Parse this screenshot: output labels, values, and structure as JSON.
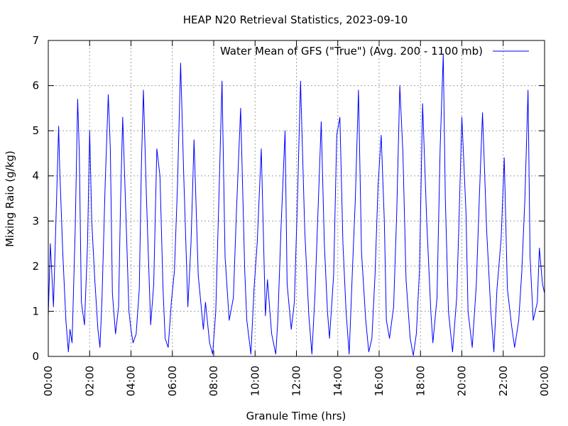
{
  "chart_data": {
    "type": "line",
    "title": "HEAP N20 Retrieval Statistics, 2023-09-10",
    "xlabel": "Granule Time (hrs)",
    "ylabel": "Mixing Raio (g/kg)",
    "xlim": [
      0,
      24
    ],
    "ylim": [
      0,
      7
    ],
    "grid": true,
    "legend_position": "top-right",
    "x_tick_labels": [
      "00:00",
      "02:00",
      "04:00",
      "06:00",
      "08:00",
      "10:00",
      "12:00",
      "14:00",
      "16:00",
      "18:00",
      "20:00",
      "22:00",
      "00:00"
    ],
    "y_tick_labels": [
      "0",
      "1",
      "2",
      "3",
      "4",
      "5",
      "6",
      "7"
    ],
    "series": [
      {
        "name": "Water Mean of GFS (\"True\") (Avg. 200 - 1100 mb)",
        "color": "#0000ff",
        "x": [
          0.0,
          0.1,
          0.25,
          0.4,
          0.5,
          0.55,
          0.7,
          0.85,
          0.97,
          1.05,
          1.15,
          1.3,
          1.42,
          1.5,
          1.6,
          1.75,
          1.9,
          2.0,
          2.1,
          2.25,
          2.4,
          2.5,
          2.6,
          2.75,
          2.9,
          3.0,
          3.1,
          3.25,
          3.4,
          3.5,
          3.6,
          3.75,
          3.9,
          4.0,
          4.1,
          4.25,
          4.4,
          4.5,
          4.6,
          4.75,
          4.95,
          5.1,
          5.25,
          5.4,
          5.55,
          5.65,
          5.8,
          5.95,
          6.1,
          6.25,
          6.4,
          6.55,
          6.75,
          6.9,
          7.05,
          7.25,
          7.5,
          7.6,
          7.8,
          7.95,
          8.1,
          8.25,
          8.4,
          8.55,
          8.75,
          8.95,
          9.1,
          9.3,
          9.5,
          9.6,
          9.8,
          9.95,
          10.1,
          10.3,
          10.5,
          10.6,
          10.8,
          11.0,
          11.1,
          11.25,
          11.45,
          11.55,
          11.75,
          11.9,
          12.05,
          12.2,
          12.4,
          12.6,
          12.75,
          12.9,
          13.05,
          13.2,
          13.35,
          13.5,
          13.6,
          13.8,
          13.95,
          14.1,
          14.25,
          14.4,
          14.55,
          14.7,
          14.85,
          15.0,
          15.15,
          15.35,
          15.5,
          15.65,
          15.8,
          15.95,
          16.1,
          16.25,
          16.35,
          16.5,
          16.7,
          16.85,
          17.0,
          17.15,
          17.3,
          17.5,
          17.65,
          17.8,
          17.95,
          18.1,
          18.3,
          18.5,
          18.6,
          18.8,
          18.95,
          19.1,
          19.2,
          19.35,
          19.55,
          19.75,
          19.85,
          20.0,
          20.2,
          20.3,
          20.5,
          20.7,
          20.85,
          21.0,
          21.2,
          21.4,
          21.55,
          21.7,
          21.9,
          22.05,
          22.2,
          22.4,
          22.55,
          22.75,
          22.9,
          23.05,
          23.2,
          23.3,
          23.45,
          23.65,
          23.75,
          23.9,
          24.0
        ],
        "y": [
          0.9,
          2.5,
          1.1,
          3.5,
          5.1,
          4.2,
          2.3,
          0.8,
          0.1,
          0.6,
          0.3,
          2.8,
          5.7,
          4.5,
          1.2,
          0.7,
          2.5,
          5.0,
          3.0,
          1.7,
          0.6,
          0.2,
          1.3,
          3.8,
          5.8,
          4.6,
          1.4,
          0.5,
          1.1,
          3.5,
          5.3,
          3.2,
          1.0,
          0.6,
          0.3,
          0.5,
          1.5,
          4.2,
          5.9,
          3.5,
          0.7,
          1.6,
          4.6,
          4.0,
          1.5,
          0.4,
          0.2,
          1.2,
          1.9,
          3.8,
          6.5,
          4.0,
          1.1,
          2.5,
          4.8,
          1.8,
          0.6,
          1.2,
          0.3,
          0.05,
          1.0,
          3.5,
          6.1,
          2.2,
          0.8,
          1.3,
          3.2,
          5.5,
          1.9,
          0.8,
          0.05,
          1.5,
          2.5,
          4.6,
          0.9,
          1.7,
          0.5,
          0.05,
          0.8,
          2.8,
          5.0,
          1.6,
          0.6,
          1.2,
          3.5,
          6.1,
          2.8,
          0.9,
          0.05,
          1.4,
          3.3,
          5.2,
          2.5,
          1.0,
          0.4,
          1.8,
          4.9,
          5.3,
          2.5,
          1.0,
          0.05,
          1.8,
          3.5,
          5.9,
          2.3,
          0.8,
          0.1,
          0.4,
          1.8,
          3.8,
          4.9,
          3.0,
          0.8,
          0.4,
          1.1,
          3.2,
          6.0,
          4.5,
          1.7,
          0.4,
          0.02,
          0.5,
          1.9,
          5.6,
          3.0,
          1.0,
          0.3,
          1.3,
          4.6,
          6.7,
          3.5,
          1.0,
          0.1,
          1.3,
          2.8,
          5.3,
          3.2,
          1.0,
          0.2,
          1.6,
          3.6,
          5.4,
          2.8,
          1.0,
          0.1,
          1.5,
          2.6,
          4.4,
          1.5,
          0.7,
          0.2,
          0.8,
          1.9,
          3.5,
          5.9,
          2.2,
          0.8,
          1.2,
          2.4,
          1.6,
          1.4
        ]
      }
    ]
  }
}
